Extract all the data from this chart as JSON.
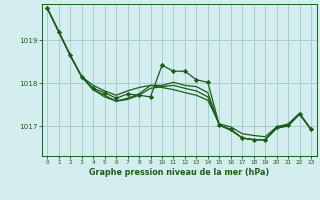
{
  "background_color": "#d4eef0",
  "grid_color": "#a8cdd0",
  "line_color": "#1a5c1a",
  "marker_color": "#1a5c1a",
  "xlabel": "Graphe pression niveau de la mer (hPa)",
  "xlabel_color": "#1a5c1a",
  "tick_color": "#1a5c1a",
  "yticks": [
    1017,
    1018,
    1019
  ],
  "ylim": [
    1016.3,
    1019.85
  ],
  "xlim": [
    -0.5,
    23.5
  ],
  "xticks": [
    0,
    1,
    2,
    3,
    4,
    5,
    6,
    7,
    8,
    9,
    10,
    11,
    12,
    13,
    14,
    15,
    16,
    17,
    18,
    19,
    20,
    21,
    22,
    23
  ],
  "series": [
    [
      1019.75,
      1019.2,
      1018.65,
      1018.15,
      1017.95,
      1017.82,
      1017.72,
      1017.82,
      1017.9,
      1017.95,
      1017.9,
      1017.85,
      1017.78,
      1017.72,
      1017.6,
      1017.05,
      1016.98,
      1016.82,
      1016.78,
      1016.75,
      1016.98,
      1017.05,
      1017.3,
      1016.92
    ],
    [
      1019.75,
      1019.2,
      1018.65,
      1018.15,
      1017.88,
      1017.78,
      1017.65,
      1017.75,
      1017.72,
      1017.68,
      1018.42,
      1018.28,
      1018.28,
      1018.08,
      1018.02,
      1017.02,
      1016.92,
      1016.72,
      1016.68,
      1016.68,
      1016.98,
      1017.02,
      1017.28,
      1016.92
    ],
    [
      1019.75,
      1019.2,
      1018.65,
      1018.15,
      1017.85,
      1017.72,
      1017.58,
      1017.65,
      1017.75,
      1017.95,
      1017.95,
      1018.02,
      1017.95,
      1017.92,
      1017.78,
      1017.02,
      1016.92,
      1016.72,
      1016.68,
      1016.68,
      1016.95,
      1017.02,
      1017.28,
      1016.92
    ],
    [
      1019.75,
      1019.2,
      1018.65,
      1018.15,
      1017.85,
      1017.68,
      1017.58,
      1017.62,
      1017.72,
      1017.88,
      1017.92,
      1017.95,
      1017.88,
      1017.82,
      1017.68,
      1017.02,
      1016.9,
      1016.72,
      1016.68,
      1016.68,
      1016.95,
      1017.0,
      1017.28,
      1016.92
    ]
  ],
  "markers": [
    false,
    true,
    false,
    false
  ],
  "figw": 3.2,
  "figh": 2.0,
  "dpi": 100
}
